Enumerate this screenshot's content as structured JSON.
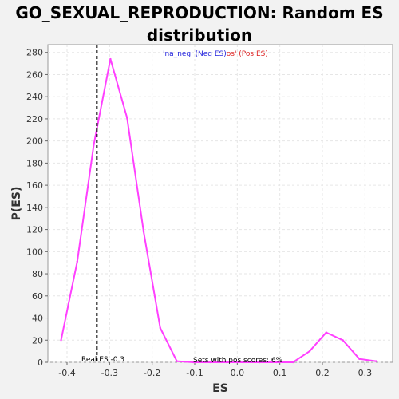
{
  "chart_data": {
    "type": "line",
    "title_lines": [
      "GO_SEXUAL_REPRODUCTION: Random ES",
      "distribution"
    ],
    "xlabel": "ES",
    "ylabel": "P(ES)",
    "xlim": [
      -0.445,
      0.365
    ],
    "ylim": [
      0,
      287
    ],
    "x_ticks": [
      -0.4,
      -0.3,
      -0.2,
      -0.1,
      0.0,
      0.1,
      0.2,
      0.3
    ],
    "x_tick_labels": [
      "-0.4",
      "-0.3",
      "-0.2",
      "-0.1",
      "0.0",
      "0.1",
      "0.2",
      "0.3"
    ],
    "y_ticks": [
      0,
      20,
      40,
      60,
      80,
      100,
      120,
      140,
      160,
      180,
      200,
      220,
      240,
      260,
      280
    ],
    "y_tick_labels": [
      "0",
      "20",
      "40",
      "60",
      "80",
      "100",
      "120",
      "140",
      "160",
      "180",
      "200",
      "220",
      "240",
      "260",
      "280"
    ],
    "grid": true,
    "series": [
      {
        "color": "#ff40ff",
        "x": [
          -0.414,
          -0.376,
          -0.337,
          -0.298,
          -0.259,
          -0.22,
          -0.181,
          -0.142,
          -0.103,
          -0.064,
          -0.025,
          0.014,
          0.053,
          0.092,
          0.131,
          0.17,
          0.209,
          0.248,
          0.287,
          0.326
        ],
        "y": [
          20,
          91,
          197,
          274,
          221,
          118,
          31,
          1,
          0,
          0,
          0,
          0,
          0,
          0,
          0,
          10,
          27,
          20,
          3,
          1
        ]
      }
    ],
    "real_es": {
      "x": -0.33,
      "label": "Real ES -0.3",
      "color": "#000000"
    },
    "legend": {
      "neg_text": "'na_neg' (Neg ES)",
      "neg_color": "#2222dd",
      "pos_text": "os' (Pos ES)",
      "pos_color": "#dd2222",
      "placement": "top-center"
    },
    "annotation": "Sets with pos scores: 6%"
  }
}
